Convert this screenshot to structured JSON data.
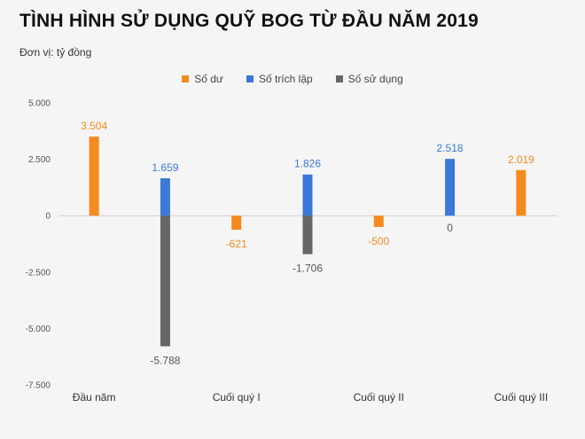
{
  "header": {
    "title": "TÌNH HÌNH SỬ DỤNG QUỸ BOG TỪ ĐẦU NĂM 2019",
    "subtitle": "Đơn vị: tỷ đồng"
  },
  "chart_data": {
    "type": "bar",
    "categories": [
      "Đầu năm",
      "",
      "Cuối quý I",
      "",
      "Cuối quý II",
      "",
      "Cuối quý III"
    ],
    "series": [
      {
        "name": "Số dư",
        "color": "#f58a1f",
        "values": [
          3504,
          null,
          -621,
          null,
          -500,
          null,
          2019
        ],
        "labels": [
          "3.504",
          null,
          "-621",
          null,
          "-500",
          null,
          "2.019"
        ]
      },
      {
        "name": "Số trích lập",
        "color": "#3c78d8",
        "values": [
          null,
          1659,
          null,
          1826,
          null,
          2518,
          null
        ],
        "labels": [
          null,
          "1.659",
          null,
          "1.826",
          null,
          "2.518",
          null
        ]
      },
      {
        "name": "Số sử dụng",
        "color": "#666666",
        "values": [
          null,
          -5788,
          null,
          -1706,
          null,
          0,
          null
        ],
        "labels": [
          null,
          "-5.788",
          null,
          "-1.706",
          null,
          "0",
          null
        ]
      }
    ],
    "yticks": [
      5000,
      2500,
      0,
      -2500,
      -5000,
      -7500
    ],
    "ytick_labels": [
      "5.000",
      "2.500",
      "0",
      "-2.500",
      "-5.000",
      "-7.500"
    ],
    "ylim": [
      -7500,
      5000
    ],
    "grid": false,
    "legend_position": "top-center"
  }
}
